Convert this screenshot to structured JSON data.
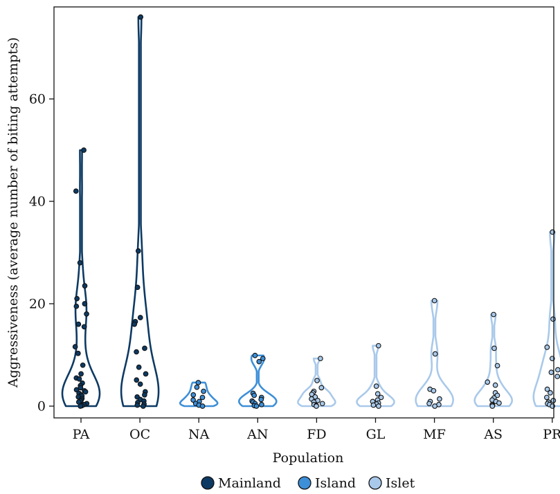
{
  "chart_data": {
    "type": "violin",
    "title": "",
    "xlabel": "Population",
    "ylabel": "Aggressiveness (average number of biting attempts)",
    "ylim": [
      -2,
      78
    ],
    "yticks": [
      0,
      20,
      40,
      60
    ],
    "grid": false,
    "legend_placement": "bottom-center",
    "categories": [
      "PA",
      "OC",
      "NA",
      "AN",
      "FD",
      "GL",
      "MF",
      "AS",
      "PR"
    ],
    "groups": [
      {
        "name": "Mainland",
        "color": "#0d3a63"
      },
      {
        "name": "Island",
        "color": "#3d8fd8"
      },
      {
        "name": "Islet",
        "color": "#a9c9ea"
      }
    ],
    "series": [
      {
        "category": "PA",
        "group": "Mainland",
        "points": [
          50,
          42,
          28,
          23.5,
          21,
          20,
          19.5,
          18,
          16,
          15.5,
          11.6,
          10.3,
          8,
          6.3,
          5.5,
          5.3,
          4.5,
          4,
          3.6,
          3.2,
          3,
          2.8,
          2.5,
          2.2,
          2,
          1.8,
          1.5,
          1.2,
          1,
          0.8,
          0.5,
          0.3,
          0.1,
          0
        ]
      },
      {
        "category": "OC",
        "group": "Mainland",
        "points": [
          76,
          30.3,
          23.2,
          17.3,
          16.5,
          16,
          11.3,
          10.6,
          7.6,
          6.3,
          5.1,
          4.3,
          2.8,
          2.2,
          1.8,
          1.3,
          1,
          0.7,
          0.4,
          0.2,
          0
        ]
      },
      {
        "category": "NA",
        "group": "Island",
        "points": [
          4.6,
          3.7,
          2.9,
          2.2,
          1.7,
          1.2,
          0.9,
          0.5,
          0.2,
          0
        ]
      },
      {
        "category": "AN",
        "group": "Island",
        "points": [
          9.9,
          9.3,
          8.7,
          2.5,
          2.1,
          1.7,
          1.3,
          1,
          0.8,
          0.5,
          0.3,
          0.1,
          0
        ]
      },
      {
        "category": "FD",
        "group": "Islet",
        "points": [
          9.3,
          5,
          3.6,
          2.9,
          2.6,
          2.3,
          1.8,
          1.4,
          1.1,
          0.8,
          0.5,
          0.3,
          0.1,
          0
        ]
      },
      {
        "category": "GL",
        "group": "Islet",
        "points": [
          11.8,
          3.9,
          2.4,
          1.7,
          1.2,
          0.9,
          0.6,
          0.4,
          0.2,
          0
        ]
      },
      {
        "category": "MF",
        "group": "Islet",
        "points": [
          20.6,
          10.2,
          3.3,
          3,
          1.4,
          0.9,
          0.5,
          0.3,
          0
        ]
      },
      {
        "category": "AS",
        "group": "Islet",
        "points": [
          17.9,
          11.3,
          7.9,
          4.7,
          4.1,
          2.6,
          2.1,
          1.6,
          1.2,
          0.9,
          0.6,
          0.3,
          0.1,
          0
        ]
      },
      {
        "category": "PR",
        "group": "Islet",
        "points": [
          34,
          17,
          11.5,
          9.3,
          7.1,
          6.6,
          5.8,
          3.3,
          2.6,
          1.7,
          1.1,
          0.8,
          0.5,
          0.3,
          0
        ]
      }
    ]
  }
}
